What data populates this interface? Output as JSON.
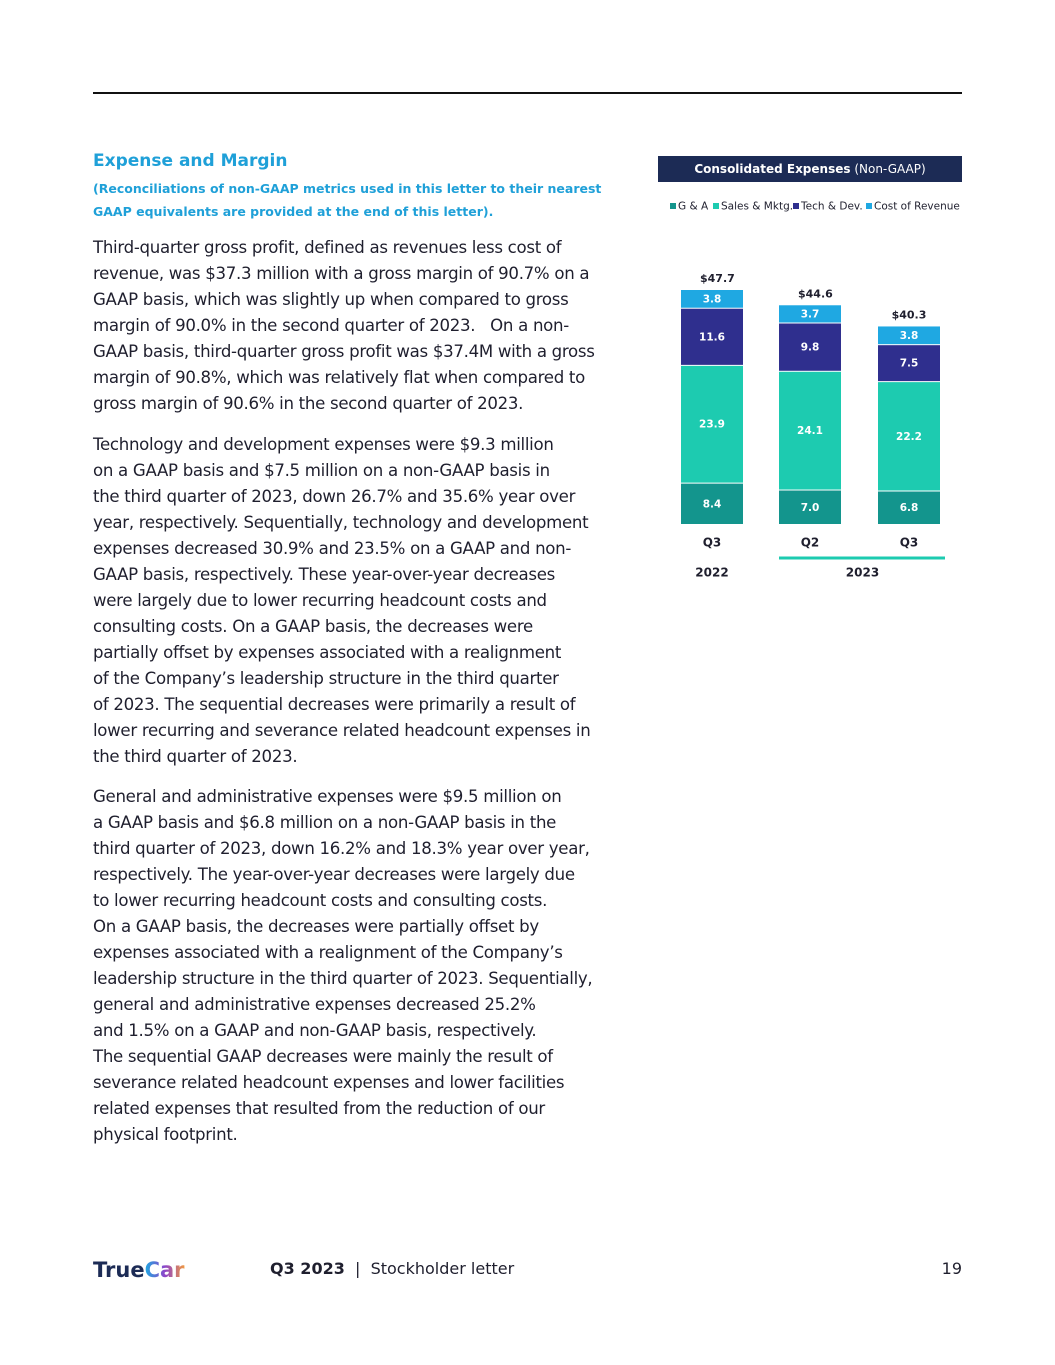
{
  "document": {
    "heading": "Expense and Margin",
    "subheading": [
      "(Reconciliations of non-GAAP metrics used in this letter to their nearest",
      "GAAP equivalents are provided at the end of this letter)."
    ],
    "paragraphs": [
      [
        "Third-quarter gross profit, defined as revenues less cost of",
        "revenue, was $37.3 million with a gross margin of 90.7% on a",
        "GAAP basis, which was slightly up when compared to gross",
        "margin of 90.0% in the second quarter of 2023.   On a non-",
        "GAAP basis, third-quarter gross profit was $37.4M with a gross",
        "margin of 90.8%, which was relatively flat when compared to",
        "gross margin of 90.6% in the second quarter of 2023."
      ],
      [
        "Technology and development expenses were $9.3 million",
        "on a GAAP basis and $7.5 million on a non-GAAP basis in",
        "the third quarter of 2023, down 26.7% and 35.6% year over",
        "year, respectively. Sequentially, technology and development",
        "expenses decreased 30.9% and 23.5% on a GAAP and non-",
        "GAAP basis, respectively. These year-over-year decreases",
        "were largely due to lower recurring headcount costs and",
        "consulting costs. On a GAAP basis, the decreases were",
        "partially offset by expenses associated with a realignment",
        "of the Company’s leadership structure in the third quarter",
        "of 2023. The sequential decreases were primarily a result of",
        "lower recurring and severance related headcount expenses in",
        "the third quarter of 2023."
      ],
      [
        "General and administrative expenses were $9.5 million on",
        "a GAAP basis and $6.8 million on a non-GAAP basis in the",
        "third quarter of 2023, down 16.2% and 18.3% year over year,",
        "respectively. The year-over-year decreases were largely due",
        "to lower recurring headcount costs and consulting costs.",
        "On a GAAP basis, the decreases were partially offset by",
        "expenses associated with a realignment of the Company’s",
        "leadership structure in the third quarter of 2023. Sequentially,",
        "general and administrative expenses decreased 25.2%",
        "and 1.5% on a GAAP and non-GAAP basis, respectively.",
        "The sequential GAAP decreases were mainly the result of",
        "severance related headcount expenses and lower facilities",
        "related expenses that resulted from the reduction of our",
        "physical footprint."
      ]
    ],
    "footer": {
      "logo_true": "True",
      "logo_car": "Car",
      "quarter": "Q3 2023",
      "separator": "|",
      "letter": "Stockholder letter",
      "page": "19"
    }
  },
  "chart_data": {
    "type": "stacked_bar",
    "title": "Consolidated Expenses",
    "title_suffix": "(Non-GAAP)",
    "categories": [
      "Q3",
      "Q2",
      "Q3"
    ],
    "group_labels": [
      "2022",
      "2023"
    ],
    "totals": [
      47.7,
      44.6,
      40.3
    ],
    "total_labels": [
      "$47.7",
      "$44.6",
      "$40.3"
    ],
    "series": [
      {
        "name": "G & A",
        "color": "#13958d",
        "values": [
          8.4,
          7.0,
          6.8
        ],
        "value_labels": [
          "8.4",
          "7.0",
          "6.8"
        ]
      },
      {
        "name": "Sales & Mktg.",
        "color": "#1dcbb0",
        "values": [
          23.9,
          24.1,
          22.2
        ]
      },
      {
        "name": "Tech & Dev.",
        "color": "#2f2f8e",
        "values": [
          11.6,
          9.8,
          7.5
        ]
      },
      {
        "name": "Cost of Revenue",
        "color": "#1fa8e2",
        "values": [
          3.8,
          3.7,
          3.8
        ]
      }
    ]
  }
}
